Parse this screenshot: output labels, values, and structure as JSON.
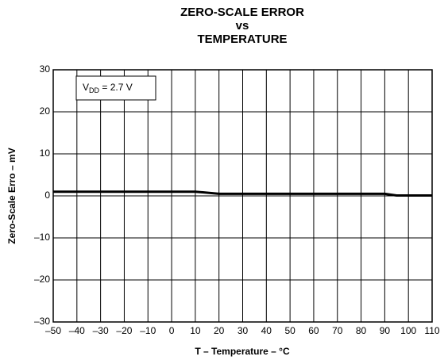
{
  "chart_data": {
    "type": "line",
    "title": [
      "ZERO-SCALE ERROR",
      "vs",
      "TEMPERATURE"
    ],
    "x_label": "T – Temperature – °C",
    "y_label": "Zero-Scale Erro – mV",
    "annotation": {
      "main": "V",
      "sub": "DD",
      "rest": " = 2.7 V"
    },
    "x": [
      -50,
      10,
      20,
      90,
      95,
      110
    ],
    "series": [
      {
        "name": "",
        "color": "#000000",
        "values": [
          1,
          1,
          0.5,
          0.5,
          0.1,
          0.1
        ]
      }
    ],
    "xlim": [
      -50,
      110
    ],
    "xticks": [
      {
        "value": -50,
        "label": "–50"
      },
      {
        "value": -40,
        "label": "–40"
      },
      {
        "value": -30,
        "label": "–30"
      },
      {
        "value": -20,
        "label": "–20"
      },
      {
        "value": -10,
        "label": "–10"
      },
      0,
      10,
      20,
      30,
      40,
      50,
      60,
      70,
      80,
      90,
      100,
      110
    ],
    "ylim": [
      -30,
      30
    ],
    "yticks": [
      {
        "value": -30,
        "label": "–30"
      },
      {
        "value": -20,
        "label": "–20"
      },
      {
        "value": -10,
        "label": "–10"
      },
      0,
      10,
      20,
      30
    ],
    "grid": true
  }
}
